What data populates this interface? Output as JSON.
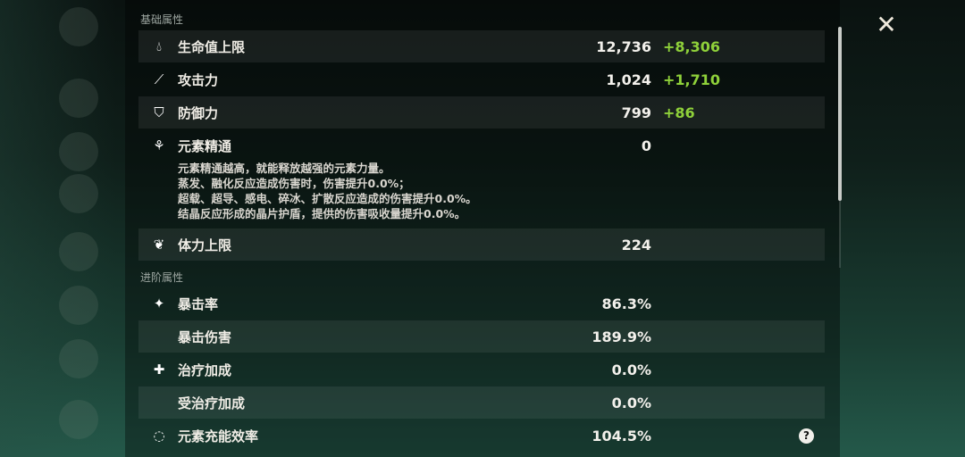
{
  "sections": {
    "base": "基础属性",
    "advanced": "进阶属性"
  },
  "base_stats": [
    {
      "icon": "hp-drop-icon",
      "label": "生命值上限",
      "value": "12,736",
      "bonus": "+8,306"
    },
    {
      "icon": "sword-icon",
      "label": "攻击力",
      "value": "1,024",
      "bonus": "+1,710"
    },
    {
      "icon": "shield-icon",
      "label": "防御力",
      "value": "799",
      "bonus": "+86"
    },
    {
      "icon": "elemental-mastery-icon",
      "label": "元素精通",
      "value": "0",
      "bonus": ""
    },
    {
      "icon": "stamina-icon",
      "label": "体力上限",
      "value": "224",
      "bonus": ""
    }
  ],
  "em_description": [
    "元素精通越高，就能释放越强的元素力量。",
    "蒸发、融化反应造成伤害时，伤害提升0.0%；",
    "超载、超导、感电、碎冰、扩散反应造成的伤害提升0.0%。",
    "结晶反应形成的晶片护盾，提供的伤害吸收量提升0.0%。"
  ],
  "advanced_stats": [
    {
      "icon": "crit-icon",
      "label": "暴击率",
      "value": "86.3%"
    },
    {
      "icon": "",
      "label": "暴击伤害",
      "value": "189.9%"
    },
    {
      "icon": "healing-cross-icon",
      "label": "治疗加成",
      "value": "0.0%"
    },
    {
      "icon": "",
      "label": "受治疗加成",
      "value": "0.0%"
    },
    {
      "icon": "energy-recharge-icon",
      "label": "元素充能效率",
      "value": "104.5%"
    }
  ],
  "close_icon": "close-icon",
  "help_icon": "question-icon",
  "colors": {
    "bonus": "#8fd13a"
  }
}
